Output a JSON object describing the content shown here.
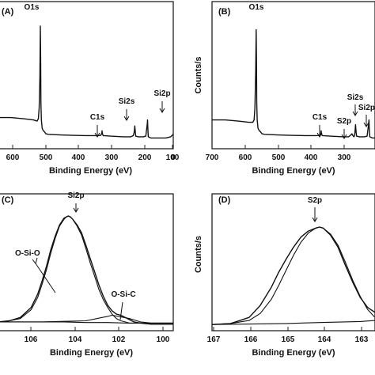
{
  "chart_data": [
    {
      "type": "line",
      "panel": "(A)",
      "xlabel": "Binding Energy (eV)",
      "ylabel": "",
      "xlim": [
        700,
        0
      ],
      "xticks": [
        "600",
        "500",
        "400",
        "300",
        "200",
        "100",
        "0"
      ],
      "annotations": [
        "O1s",
        "C1s",
        "Si2s",
        "Si2p"
      ],
      "series": [
        {
          "name": "",
          "x": [
            700,
            650,
            600,
            560,
            545,
            540,
            537,
            534,
            532,
            531,
            530,
            528,
            525,
            520,
            515,
            510,
            500,
            450,
            400,
            350,
            300,
            290,
            286,
            285,
            284,
            282,
            280,
            250,
            200,
            170,
            160,
            156,
            154,
            152,
            150,
            140,
            120,
            110,
            104,
            103,
            102,
            100,
            90,
            60,
            30,
            10,
            0
          ],
          "y": [
            0.22,
            0.22,
            0.21,
            0.2,
            0.19,
            0.21,
            0.3,
            0.55,
            0.98,
            0.7,
            0.35,
            0.2,
            0.13,
            0.11,
            0.1,
            0.085,
            0.08,
            0.075,
            0.072,
            0.07,
            0.07,
            0.072,
            0.09,
            0.11,
            0.09,
            0.075,
            0.07,
            0.065,
            0.06,
            0.06,
            0.07,
            0.1,
            0.15,
            0.1,
            0.065,
            0.06,
            0.06,
            0.065,
            0.17,
            0.2,
            0.14,
            0.06,
            0.05,
            0.05,
            0.05,
            0.06,
            0.08
          ]
        }
      ]
    },
    {
      "type": "line",
      "panel": "(B)",
      "xlabel": "Binding Energy (eV)",
      "ylabel": "Counts/s",
      "xlim": [
        700,
        80
      ],
      "xticks": [
        "700",
        "600",
        "500",
        "400",
        "300",
        "200",
        "100"
      ],
      "annotations": [
        "O1s",
        "C1s",
        "S2p",
        "Si2s",
        "Si2p"
      ],
      "series": [
        {
          "name": "",
          "x": [
            700,
            650,
            600,
            560,
            545,
            540,
            537,
            534,
            532,
            531,
            530,
            528,
            525,
            520,
            515,
            510,
            500,
            450,
            400,
            350,
            300,
            290,
            286,
            285,
            284,
            282,
            280,
            250,
            200,
            180,
            172,
            168,
            164,
            160,
            158,
            156,
            154,
            152,
            150,
            140,
            120,
            110,
            104,
            103,
            102,
            100,
            90,
            80
          ],
          "y": [
            0.2,
            0.2,
            0.19,
            0.18,
            0.18,
            0.2,
            0.3,
            0.6,
            0.95,
            0.7,
            0.35,
            0.2,
            0.13,
            0.11,
            0.1,
            0.085,
            0.08,
            0.075,
            0.072,
            0.07,
            0.07,
            0.072,
            0.09,
            0.11,
            0.09,
            0.075,
            0.07,
            0.065,
            0.06,
            0.06,
            0.075,
            0.085,
            0.07,
            0.06,
            0.07,
            0.1,
            0.16,
            0.1,
            0.065,
            0.06,
            0.06,
            0.065,
            0.17,
            0.2,
            0.14,
            0.06,
            0.05,
            0.05
          ]
        }
      ]
    },
    {
      "type": "line",
      "panel": "(C)",
      "xlabel": "Binding Energy (eV)",
      "ylabel": "",
      "xlim": [
        107,
        99
      ],
      "xticks": [
        "106",
        "104",
        "102",
        "100"
      ],
      "annotations": [
        "Si2p",
        "O-Si-O",
        "O-Si-C"
      ],
      "series": [
        {
          "name": "",
          "x": [
            107,
            106.5,
            106,
            105.5,
            105.2,
            105,
            104.8,
            104.6,
            104.4,
            104.2,
            104,
            103.9,
            103.8,
            103.7,
            103.6,
            103.4,
            103.2,
            103,
            102.8,
            102.6,
            102.4,
            102.2,
            102,
            101.8,
            101.6,
            101.4,
            101.2,
            101,
            100.8,
            100.5,
            100,
            99.5,
            99
          ],
          "y": [
            0.05,
            0.06,
            0.09,
            0.18,
            0.3,
            0.42,
            0.55,
            0.7,
            0.82,
            0.92,
            0.98,
            0.99,
            1.0,
            0.99,
            0.97,
            0.92,
            0.85,
            0.74,
            0.62,
            0.5,
            0.38,
            0.28,
            0.2,
            0.15,
            0.12,
            0.11,
            0.09,
            0.07,
            0.05,
            0.04,
            0.03,
            0.03,
            0.03
          ]
        },
        {
          "name": "",
          "x": [
            107,
            106.5,
            106,
            105.5,
            105.2,
            105,
            104.8,
            104.6,
            104.4,
            104.2,
            104,
            103.9,
            103.8,
            103.7,
            103.6,
            103.4,
            103.2,
            103,
            102.8,
            102.6,
            102.4,
            102.2,
            102,
            101.8,
            101.6,
            101.4,
            101.2,
            101,
            100.8,
            100.5,
            100,
            99.5,
            99
          ],
          "y": [
            0.05,
            0.06,
            0.08,
            0.16,
            0.27,
            0.39,
            0.52,
            0.67,
            0.8,
            0.91,
            0.97,
            0.99,
            1.0,
            0.99,
            0.97,
            0.91,
            0.83,
            0.71,
            0.58,
            0.46,
            0.34,
            0.25,
            0.18,
            0.12,
            0.08,
            0.06,
            0.05,
            0.04,
            0.04,
            0.04,
            0.04,
            0.04,
            0.04
          ]
        },
        {
          "name": "",
          "x": [
            107,
            106,
            105,
            104,
            103,
            102.5,
            102,
            101.8,
            101.5,
            101,
            100.5,
            100,
            99.5,
            99
          ],
          "y": [
            0.05,
            0.05,
            0.05,
            0.055,
            0.06,
            0.08,
            0.1,
            0.11,
            0.1,
            0.08,
            0.05,
            0.04,
            0.04,
            0.04
          ]
        },
        {
          "name": "",
          "x": [
            107,
            106,
            105,
            104,
            103,
            102,
            101,
            100,
            99
          ],
          "y": [
            0.05,
            0.05,
            0.05,
            0.05,
            0.045,
            0.045,
            0.04,
            0.04,
            0.04
          ]
        }
      ]
    },
    {
      "type": "line",
      "panel": "(D)",
      "xlabel": "Binding Energy (eV)",
      "ylabel": "Counts/s",
      "xlim": [
        167,
        162.6
      ],
      "xticks": [
        "167",
        "166",
        "165",
        "164",
        "163"
      ],
      "annotations": [
        "S2p"
      ],
      "series": [
        {
          "name": "",
          "x": [
            167,
            166.5,
            166,
            165.7,
            165.4,
            165.2,
            165,
            164.8,
            164.6,
            164.4,
            164.2,
            164.1,
            164,
            163.8,
            163.6,
            163.4,
            163.2,
            163,
            162.8,
            162.6
          ],
          "y": [
            0.03,
            0.04,
            0.1,
            0.22,
            0.4,
            0.55,
            0.68,
            0.8,
            0.9,
            0.96,
            0.99,
            1.0,
            0.99,
            0.92,
            0.8,
            0.62,
            0.45,
            0.3,
            0.2,
            0.15
          ]
        },
        {
          "name": "",
          "x": [
            167,
            166.5,
            166,
            165.7,
            165.4,
            165.2,
            165,
            164.8,
            164.6,
            164.4,
            164.2,
            164.1,
            164,
            163.8,
            163.6,
            163.4,
            163.2,
            163,
            162.8,
            162.6
          ],
          "y": [
            0.03,
            0.04,
            0.07,
            0.14,
            0.28,
            0.42,
            0.57,
            0.72,
            0.85,
            0.94,
            0.99,
            1.0,
            0.99,
            0.93,
            0.82,
            0.65,
            0.47,
            0.31,
            0.18,
            0.1
          ]
        },
        {
          "name": "",
          "x": [
            167,
            166,
            165,
            164,
            163,
            162.6
          ],
          "y": [
            0.03,
            0.035,
            0.04,
            0.05,
            0.06,
            0.07
          ]
        }
      ]
    }
  ]
}
